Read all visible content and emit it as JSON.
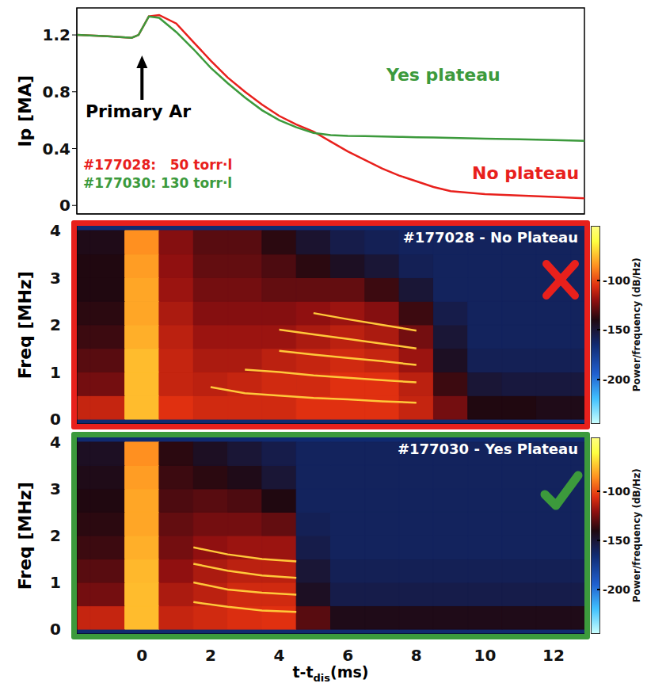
{
  "chart_data": [
    {
      "type": "line",
      "ylabel": "Ip [MA]",
      "x": [
        -1.9,
        -1,
        -0.3,
        -0.1,
        0.2,
        0.5,
        1,
        1.5,
        2,
        2.5,
        3,
        3.5,
        4,
        4.5,
        5,
        5.5,
        6,
        6.5,
        7,
        7.5,
        8,
        8.5,
        9,
        10,
        11,
        12,
        12.9
      ],
      "series": [
        {
          "color": "#e8201c",
          "values": [
            1.2,
            1.19,
            1.18,
            1.2,
            1.33,
            1.34,
            1.28,
            1.15,
            1.02,
            0.9,
            0.8,
            0.71,
            0.63,
            0.57,
            0.52,
            0.45,
            0.38,
            0.32,
            0.26,
            0.21,
            0.17,
            0.13,
            0.1,
            0.08,
            0.07,
            0.06,
            0.05
          ]
        },
        {
          "color": "#3c9a3c",
          "values": [
            1.2,
            1.19,
            1.18,
            1.2,
            1.33,
            1.32,
            1.22,
            1.1,
            0.97,
            0.86,
            0.76,
            0.67,
            0.6,
            0.55,
            0.51,
            0.495,
            0.49,
            0.488,
            0.485,
            0.483,
            0.48,
            0.478,
            0.475,
            0.47,
            0.465,
            0.46,
            0.455
          ]
        }
      ],
      "xlim": [
        -1.9,
        12.9
      ],
      "xticks": [
        0,
        2,
        4,
        6,
        8,
        10,
        12
      ],
      "ylim": [
        -0.06,
        1.39
      ],
      "yticks": [
        0,
        0.4,
        0.8,
        1.2
      ],
      "tick_labels": "y",
      "annotations": [
        {
          "text": "Primary Ar",
          "color": "#000000"
        },
        {
          "text": "#177028:   50 torr·l",
          "color": "#e8201c"
        },
        {
          "text": "#177030: 130 torr·l",
          "color": "#3c9a3c"
        },
        {
          "text": "Yes plateau",
          "color": "#3c9a3c"
        },
        {
          "text": "No plateau",
          "color": "#e8201c"
        }
      ]
    },
    {
      "type": "heatmap",
      "title": "#177028 - No Plateau",
      "ylabel": "Freq [MHz]",
      "color": "#e8201c",
      "xlim": [
        -1.9,
        12.9
      ],
      "xticks": [
        0,
        2,
        4,
        6,
        8,
        10,
        12
      ],
      "ylim": [
        -0.1,
        4.1
      ],
      "yticks": [
        0,
        1,
        2,
        3,
        4
      ],
      "tick_labels": "y",
      "x": [
        -2,
        -1,
        0,
        1,
        2,
        3,
        4,
        5,
        6,
        7,
        8,
        9,
        10,
        11,
        12,
        13
      ],
      "y": [
        0.25,
        0.75,
        1.25,
        1.75,
        2.25,
        2.75,
        3.25,
        3.75
      ],
      "z": [
        [
          -110,
          -110,
          -75,
          -105,
          -108,
          -108,
          -108,
          -105,
          -105,
          -105,
          -110,
          -125,
          -140,
          -140,
          -142,
          -142
        ],
        [
          -125,
          -125,
          -75,
          -110,
          -112,
          -110,
          -108,
          -108,
          -105,
          -105,
          -112,
          -135,
          -150,
          -152,
          -152,
          -152
        ],
        [
          -130,
          -130,
          -75,
          -110,
          -115,
          -115,
          -112,
          -110,
          -108,
          -110,
          -118,
          -145,
          -158,
          -158,
          -158,
          -158
        ],
        [
          -135,
          -135,
          -78,
          -112,
          -118,
          -118,
          -118,
          -115,
          -112,
          -115,
          -125,
          -150,
          -160,
          -160,
          -160,
          -160
        ],
        [
          -138,
          -138,
          -80,
          -115,
          -122,
          -122,
          -122,
          -120,
          -118,
          -122,
          -135,
          -155,
          -160,
          -160,
          -160,
          -160
        ],
        [
          -140,
          -140,
          -80,
          -118,
          -125,
          -125,
          -128,
          -128,
          -128,
          -135,
          -150,
          -160,
          -160,
          -160,
          -160,
          -160
        ],
        [
          -140,
          -140,
          -82,
          -120,
          -128,
          -128,
          -132,
          -138,
          -145,
          -150,
          -158,
          -160,
          -160,
          -160,
          -160,
          -160
        ],
        [
          -142,
          -142,
          -85,
          -122,
          -130,
          -130,
          -138,
          -148,
          -155,
          -158,
          -160,
          -160,
          -160,
          -160,
          -160,
          -160
        ]
      ],
      "colorbar": {
        "range": [
          -245,
          -45
        ],
        "ticks": [
          -100,
          -150,
          -200
        ],
        "label": "Power/frequency (dB/Hz)"
      },
      "mode_lines": {
        "x": [
          2,
          3,
          4,
          5,
          6,
          7,
          8
        ],
        "series": [
          {
            "color": "#ffc83a",
            "values": [
              0.68,
              0.55,
              0.5,
              0.45,
              0.42,
              0.38,
              0.35
            ]
          },
          {
            "color": "#ffc83a",
            "values": [
              null,
              1.05,
              1.0,
              0.93,
              0.88,
              0.83,
              0.78
            ]
          },
          {
            "color": "#ffc83a",
            "values": [
              null,
              null,
              1.45,
              1.37,
              1.3,
              1.23,
              1.15
            ]
          },
          {
            "color": "#ffc83a",
            "values": [
              null,
              null,
              1.9,
              1.8,
              1.7,
              1.6,
              1.5
            ]
          },
          {
            "color": "#ffc83a",
            "values": [
              null,
              null,
              null,
              2.25,
              2.12,
              2.0,
              1.88
            ]
          }
        ]
      }
    },
    {
      "type": "heatmap",
      "title": "#177030 - Yes Plateau",
      "ylabel": "Freq [MHz]",
      "color": "#3c9a3c",
      "xlabel": {
        "text": "t-t",
        "subscript": "dis",
        "suffix": "(ms)"
      },
      "xlim": [
        -1.9,
        12.9
      ],
      "xticks": [
        0,
        2,
        4,
        6,
        8,
        10,
        12
      ],
      "ylim": [
        -0.1,
        4.1
      ],
      "yticks": [
        0,
        1,
        2,
        3,
        4
      ],
      "x": [
        -2,
        -1,
        0,
        1,
        2,
        3,
        4,
        5,
        6,
        7,
        8,
        9,
        10,
        11,
        12,
        13
      ],
      "y": [
        0.25,
        0.75,
        1.25,
        1.75,
        2.25,
        2.75,
        3.25,
        3.75
      ],
      "z": [
        [
          -110,
          -110,
          -75,
          -110,
          -108,
          -106,
          -105,
          -130,
          -142,
          -142,
          -142,
          -142,
          -142,
          -142,
          -142,
          -142
        ],
        [
          -125,
          -125,
          -75,
          -115,
          -112,
          -108,
          -108,
          -145,
          -155,
          -155,
          -155,
          -155,
          -155,
          -155,
          -155,
          -155
        ],
        [
          -130,
          -130,
          -76,
          -120,
          -115,
          -112,
          -112,
          -150,
          -158,
          -158,
          -158,
          -158,
          -158,
          -158,
          -158,
          -158
        ],
        [
          -135,
          -135,
          -78,
          -125,
          -120,
          -118,
          -118,
          -155,
          -160,
          -160,
          -160,
          -160,
          -160,
          -160,
          -160,
          -160
        ],
        [
          -138,
          -138,
          -80,
          -128,
          -125,
          -125,
          -128,
          -158,
          -160,
          -160,
          -160,
          -160,
          -160,
          -160,
          -160,
          -160
        ],
        [
          -140,
          -140,
          -80,
          -132,
          -130,
          -132,
          -140,
          -160,
          -160,
          -160,
          -160,
          -160,
          -160,
          -160,
          -160,
          -160
        ],
        [
          -142,
          -142,
          -82,
          -135,
          -138,
          -142,
          -150,
          -160,
          -160,
          -160,
          -160,
          -160,
          -160,
          -160,
          -160,
          -160
        ],
        [
          -145,
          -145,
          -85,
          -138,
          -145,
          -150,
          -155,
          -160,
          -160,
          -160,
          -160,
          -160,
          -160,
          -160,
          -160,
          -160
        ]
      ],
      "colorbar": {
        "range": [
          -245,
          -45
        ],
        "ticks": [
          -100,
          -150,
          -200
        ],
        "label": "Power/frequency (dB/Hz)"
      },
      "mode_lines": {
        "x": [
          1.5,
          2.5,
          3.5,
          4.5
        ],
        "series": [
          {
            "color": "#ffc83a",
            "values": [
              0.58,
              0.48,
              0.4,
              0.37
            ]
          },
          {
            "color": "#ffc83a",
            "values": [
              1.0,
              0.85,
              0.78,
              0.74
            ]
          },
          {
            "color": "#ffc83a",
            "values": [
              1.4,
              1.25,
              1.15,
              1.1
            ]
          },
          {
            "color": "#ffc83a",
            "values": [
              1.75,
              1.6,
              1.5,
              1.45
            ]
          }
        ]
      }
    }
  ]
}
